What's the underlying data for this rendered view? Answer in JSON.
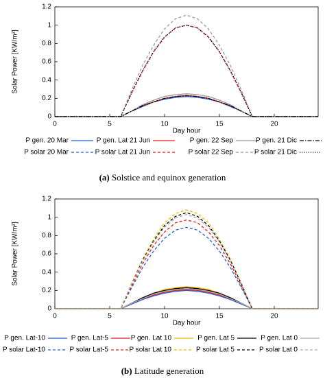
{
  "chart_data": [
    {
      "type": "line",
      "caption_label": "(a)",
      "caption": "Solstice and equinox generation",
      "xlabel": "Day hour",
      "ylabel": "Solar Power [KW/m²]",
      "x": [
        0,
        1,
        2,
        3,
        4,
        5,
        6,
        7,
        8,
        9,
        10,
        11,
        12,
        13,
        14,
        15,
        16,
        17,
        18,
        19,
        20,
        21,
        22,
        23,
        24
      ],
      "xlim": [
        0,
        24
      ],
      "xticks": [
        0,
        5,
        10,
        15,
        20
      ],
      "ylim": [
        0,
        1.2
      ],
      "yticks": [
        0,
        0.2,
        0.4,
        0.6,
        0.8,
        1,
        1.2
      ],
      "series": [
        {
          "name": "P gen. 20 Mar",
          "color": "#1f5fd6",
          "style": "solid",
          "values": [
            0,
            0,
            0,
            0,
            0,
            0,
            0,
            0.06,
            0.11,
            0.16,
            0.19,
            0.21,
            0.22,
            0.21,
            0.19,
            0.16,
            0.11,
            0.06,
            0,
            0,
            0,
            0,
            0,
            0,
            0
          ]
        },
        {
          "name": "P solar 20 Mar",
          "color": "#1f5fd6",
          "style": "dashed",
          "values": [
            0,
            0,
            0,
            0,
            0,
            0,
            0,
            0.26,
            0.5,
            0.71,
            0.87,
            0.97,
            1.0,
            0.97,
            0.87,
            0.71,
            0.5,
            0.26,
            0,
            0,
            0,
            0,
            0,
            0,
            0
          ]
        },
        {
          "name": "P gen. Lat 21 Jun",
          "color": "#e41a1c",
          "style": "solid",
          "values": [
            0,
            0,
            0,
            0,
            0,
            0,
            0,
            0.06,
            0.12,
            0.16,
            0.2,
            0.22,
            0.23,
            0.22,
            0.2,
            0.16,
            0.12,
            0.06,
            0,
            0,
            0,
            0,
            0,
            0,
            0
          ]
        },
        {
          "name": "P solar Lat 21 Jun",
          "color": "#e41a1c",
          "style": "dashed",
          "values": [
            0,
            0,
            0,
            0,
            0,
            0,
            0,
            0.26,
            0.5,
            0.71,
            0.87,
            0.97,
            1.0,
            0.97,
            0.87,
            0.71,
            0.5,
            0.26,
            0,
            0,
            0,
            0,
            0,
            0,
            0
          ]
        },
        {
          "name": "P gen. 22 Sep",
          "color": "#999999",
          "style": "solid",
          "values": [
            0,
            0,
            0,
            0,
            0,
            0,
            0,
            0.06,
            0.13,
            0.18,
            0.22,
            0.24,
            0.25,
            0.24,
            0.22,
            0.18,
            0.13,
            0.06,
            0,
            0,
            0,
            0,
            0,
            0,
            0
          ]
        },
        {
          "name": "P solar 22 Sep",
          "color": "#999999",
          "style": "dashed",
          "values": [
            0,
            0,
            0,
            0,
            0,
            0,
            0,
            0.29,
            0.56,
            0.78,
            0.96,
            1.07,
            1.11,
            1.07,
            0.96,
            0.78,
            0.56,
            0.29,
            0,
            0,
            0,
            0,
            0,
            0,
            0
          ]
        },
        {
          "name": "P gen. 21 Dic",
          "color": "#000000",
          "style": "dashdot",
          "values": [
            0,
            0,
            0,
            0,
            0,
            0,
            0,
            0.06,
            0.12,
            0.16,
            0.2,
            0.22,
            0.23,
            0.22,
            0.2,
            0.16,
            0.12,
            0.06,
            0,
            0,
            0,
            0,
            0,
            0,
            0
          ]
        },
        {
          "name": "P solar 21 Dic",
          "color": "#000000",
          "style": "dotted",
          "values": [
            0,
            0,
            0,
            0,
            0,
            0,
            0,
            0.26,
            0.5,
            0.71,
            0.87,
            0.97,
            1.0,
            0.97,
            0.87,
            0.71,
            0.5,
            0.26,
            0,
            0,
            0,
            0,
            0,
            0,
            0
          ]
        }
      ]
    },
    {
      "type": "line",
      "caption_label": "(b)",
      "caption": "Latitude generation",
      "xlabel": "Day hour",
      "ylabel": "Solar Power [KW/m²]",
      "x": [
        0,
        1,
        2,
        3,
        4,
        5,
        6,
        7,
        8,
        9,
        10,
        11,
        12,
        13,
        14,
        15,
        16,
        17,
        18,
        19,
        20,
        21,
        22,
        23,
        24
      ],
      "xlim": [
        0,
        24
      ],
      "xticks": [
        0,
        5,
        10,
        15,
        20
      ],
      "ylim": [
        0,
        1.2
      ],
      "yticks": [
        0,
        0.2,
        0.4,
        0.6,
        0.8,
        1,
        1.2
      ],
      "series": [
        {
          "name": "P gen. Lat-10",
          "color": "#1f5fd6",
          "style": "solid",
          "values": [
            0,
            0,
            0,
            0,
            0,
            0,
            0,
            0.05,
            0.1,
            0.14,
            0.17,
            0.19,
            0.2,
            0.19,
            0.17,
            0.14,
            0.1,
            0.05,
            0,
            0,
            0,
            0,
            0,
            0,
            0
          ]
        },
        {
          "name": "P solar Lat-10",
          "color": "#1f5fd6",
          "style": "dashed",
          "values": [
            0,
            0,
            0,
            0,
            0,
            0,
            0,
            0.23,
            0.45,
            0.63,
            0.77,
            0.86,
            0.89,
            0.86,
            0.77,
            0.63,
            0.45,
            0.23,
            0,
            0,
            0,
            0,
            0,
            0,
            0
          ]
        },
        {
          "name": "P gen. Lat-5",
          "color": "#e41a1c",
          "style": "solid",
          "values": [
            0,
            0,
            0,
            0,
            0,
            0,
            0,
            0.06,
            0.11,
            0.15,
            0.18,
            0.2,
            0.21,
            0.2,
            0.18,
            0.15,
            0.11,
            0.06,
            0,
            0,
            0,
            0,
            0,
            0,
            0
          ]
        },
        {
          "name": "P solar Lat-5",
          "color": "#e41a1c",
          "style": "dashed",
          "values": [
            0,
            0,
            0,
            0,
            0,
            0,
            0,
            0.25,
            0.49,
            0.69,
            0.84,
            0.94,
            0.97,
            0.94,
            0.84,
            0.69,
            0.49,
            0.25,
            0,
            0,
            0,
            0,
            0,
            0,
            0
          ]
        },
        {
          "name": "P gen. Lat 10",
          "color": "#f5b800",
          "style": "solid",
          "values": [
            0,
            0,
            0,
            0,
            0,
            0,
            0,
            0.06,
            0.12,
            0.17,
            0.21,
            0.23,
            0.24,
            0.23,
            0.21,
            0.17,
            0.12,
            0.06,
            0,
            0,
            0,
            0,
            0,
            0,
            0
          ]
        },
        {
          "name": "P solar Lat 10",
          "color": "#f5b800",
          "style": "dashed",
          "values": [
            0,
            0,
            0,
            0,
            0,
            0,
            0,
            0.28,
            0.54,
            0.76,
            0.94,
            1.04,
            1.08,
            1.04,
            0.94,
            0.76,
            0.54,
            0.28,
            0,
            0,
            0,
            0,
            0,
            0,
            0
          ]
        },
        {
          "name": "P gen. Lat 5",
          "color": "#000000",
          "style": "solid",
          "values": [
            0,
            0,
            0,
            0,
            0,
            0,
            0,
            0.06,
            0.12,
            0.17,
            0.2,
            0.22,
            0.23,
            0.22,
            0.2,
            0.17,
            0.12,
            0.06,
            0,
            0,
            0,
            0,
            0,
            0,
            0
          ]
        },
        {
          "name": "P solar Lat 5",
          "color": "#000000",
          "style": "dashed",
          "values": [
            0,
            0,
            0,
            0,
            0,
            0,
            0,
            0.27,
            0.53,
            0.74,
            0.91,
            1.01,
            1.05,
            1.01,
            0.91,
            0.74,
            0.53,
            0.27,
            0,
            0,
            0,
            0,
            0,
            0,
            0
          ]
        },
        {
          "name": "P gen. Lat 0",
          "color": "#aaaaaa",
          "style": "solid",
          "values": [
            0,
            0,
            0,
            0,
            0,
            0,
            0,
            0.06,
            0.11,
            0.16,
            0.19,
            0.21,
            0.22,
            0.21,
            0.19,
            0.16,
            0.11,
            0.06,
            0,
            0,
            0,
            0,
            0,
            0,
            0
          ]
        },
        {
          "name": "P solar Lat 0",
          "color": "#aaaaaa",
          "style": "dashed",
          "values": [
            0,
            0,
            0,
            0,
            0,
            0,
            0,
            0.27,
            0.52,
            0.73,
            0.89,
            0.99,
            1.03,
            0.99,
            0.89,
            0.73,
            0.52,
            0.27,
            0,
            0,
            0,
            0,
            0,
            0,
            0
          ]
        }
      ]
    }
  ]
}
